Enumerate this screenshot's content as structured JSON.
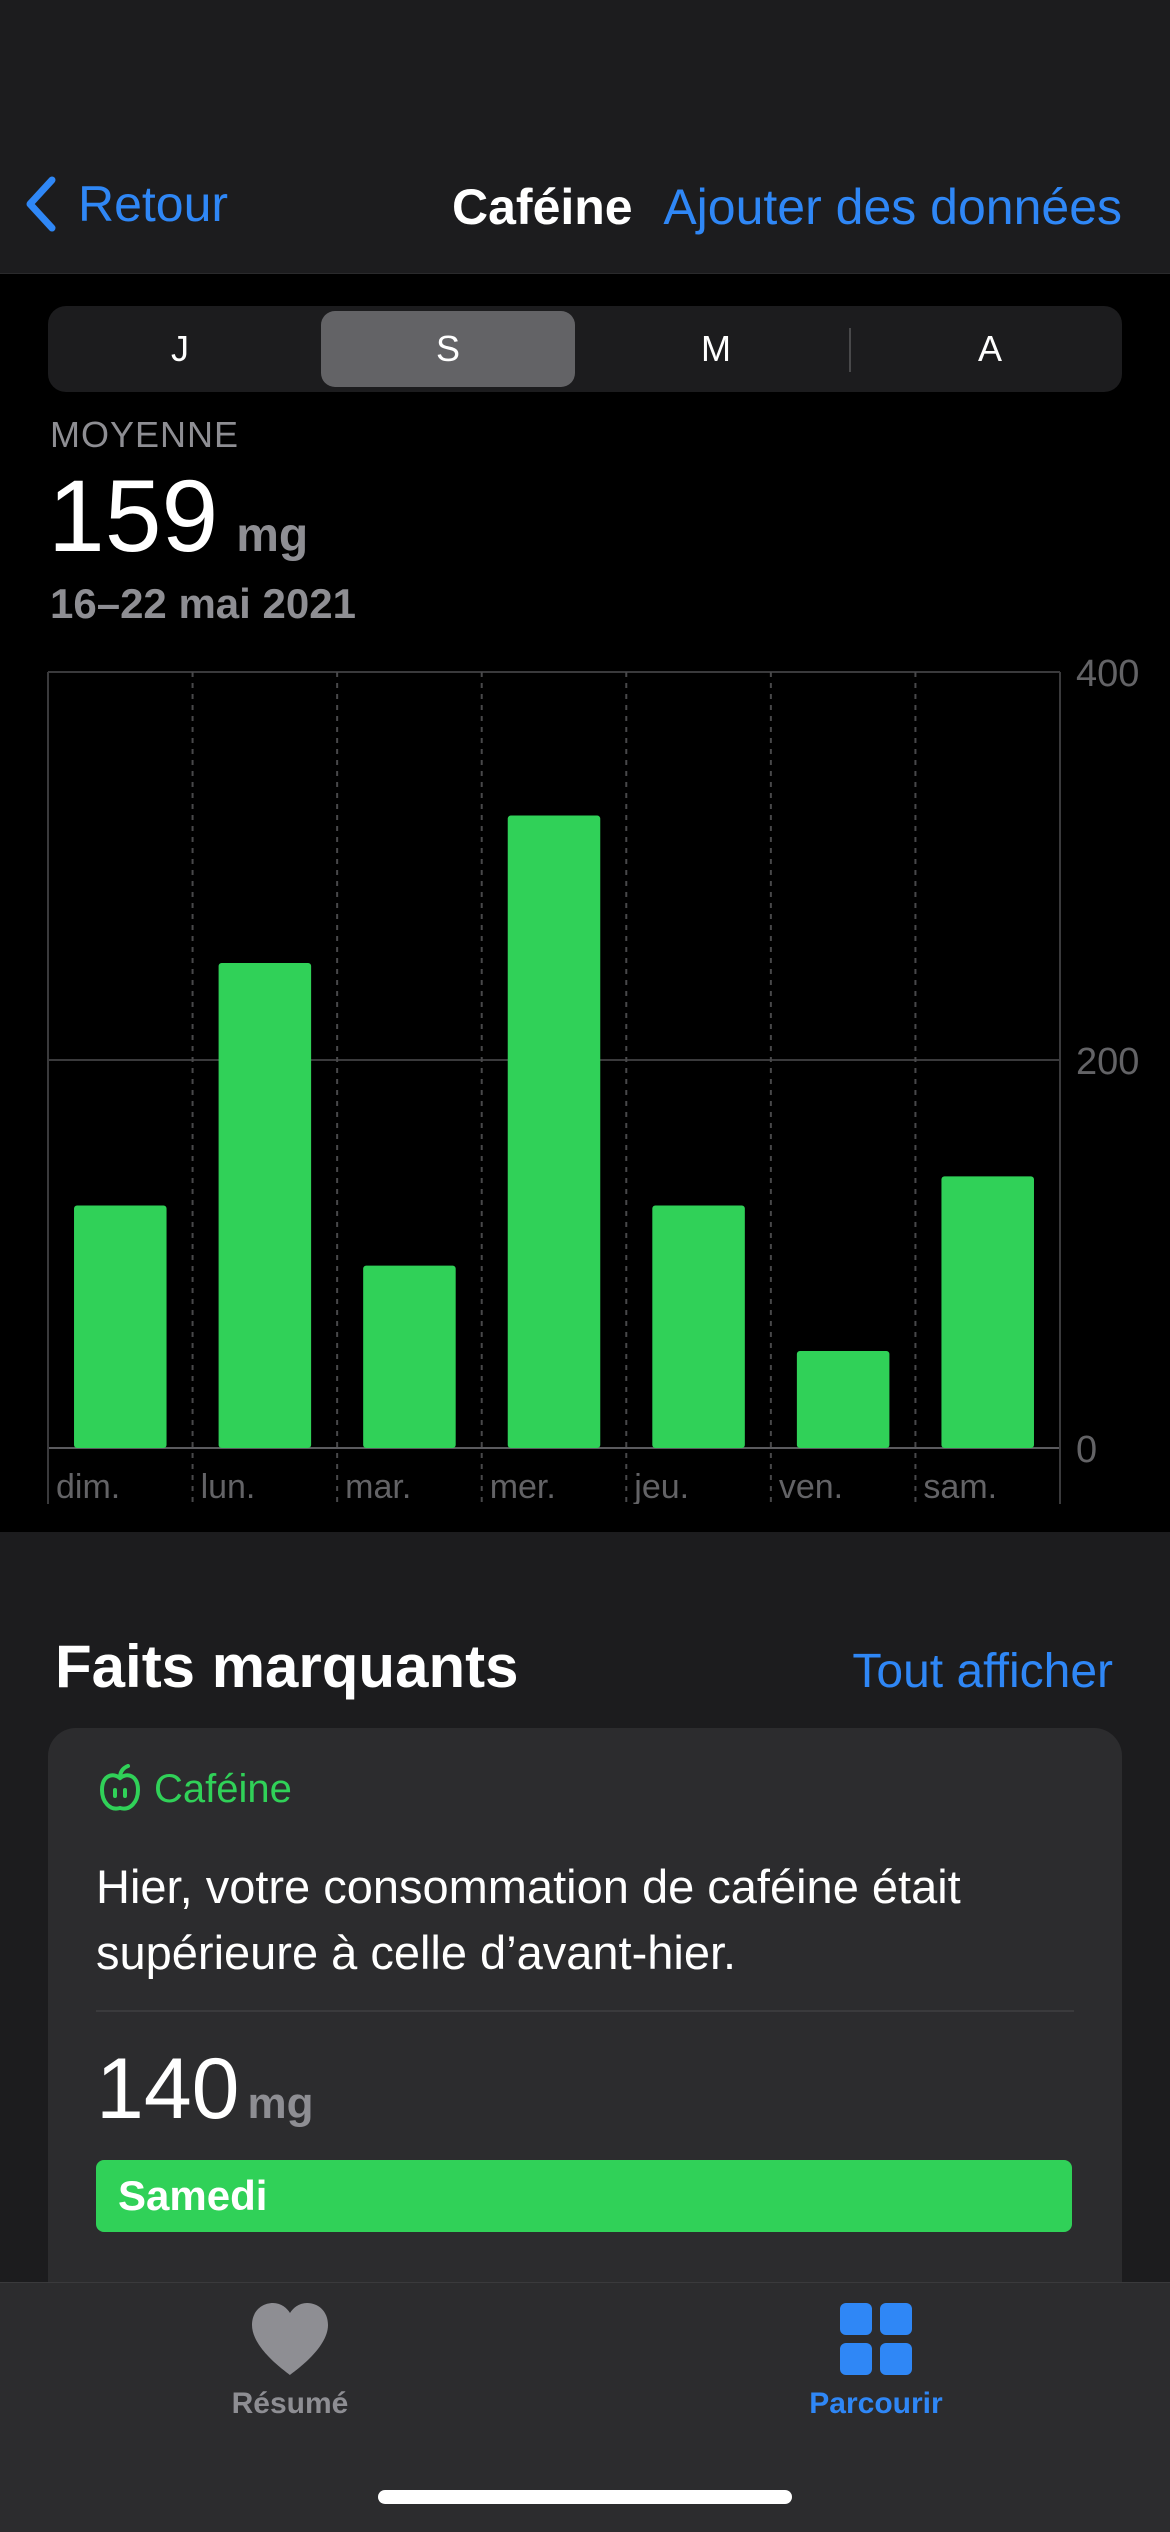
{
  "nav": {
    "back_label": "Retour",
    "title": "Caféine",
    "action_label": "Ajouter des données"
  },
  "segments": [
    "J",
    "S",
    "M",
    "A"
  ],
  "active_segment": "S",
  "summary": {
    "label": "MOYENNE",
    "value": "159",
    "unit": "mg",
    "date_range": "16–22 mai 2021"
  },
  "chart_data": {
    "type": "bar",
    "categories": [
      "dim.",
      "lun.",
      "mar.",
      "mer.",
      "jeu.",
      "ven.",
      "sam."
    ],
    "values": [
      125,
      250,
      94,
      326,
      125,
      50,
      140
    ],
    "ylim": [
      0,
      400
    ],
    "yticks": [
      0,
      200,
      400
    ],
    "y_axis_side": "right",
    "color": "#30d158",
    "grid": true
  },
  "highlights": {
    "title": "Faits marquants",
    "link_label": "Tout afficher",
    "card": {
      "category": "Caféine",
      "text": "Hier, votre consommation de caféine était supérieure à celle d’avant-hier.",
      "value": "140",
      "unit": "mg",
      "bar_label": "Samedi",
      "bar_fraction": 1.0,
      "accent_color": "#30d158"
    }
  },
  "tabs": [
    {
      "label": "Résumé",
      "icon": "heart-icon",
      "active": false
    },
    {
      "label": "Parcourir",
      "icon": "grid-icon",
      "active": true
    }
  ],
  "colors": {
    "accent": "#2f87f6",
    "green": "#30d158",
    "secondary": "#8e8e93"
  }
}
